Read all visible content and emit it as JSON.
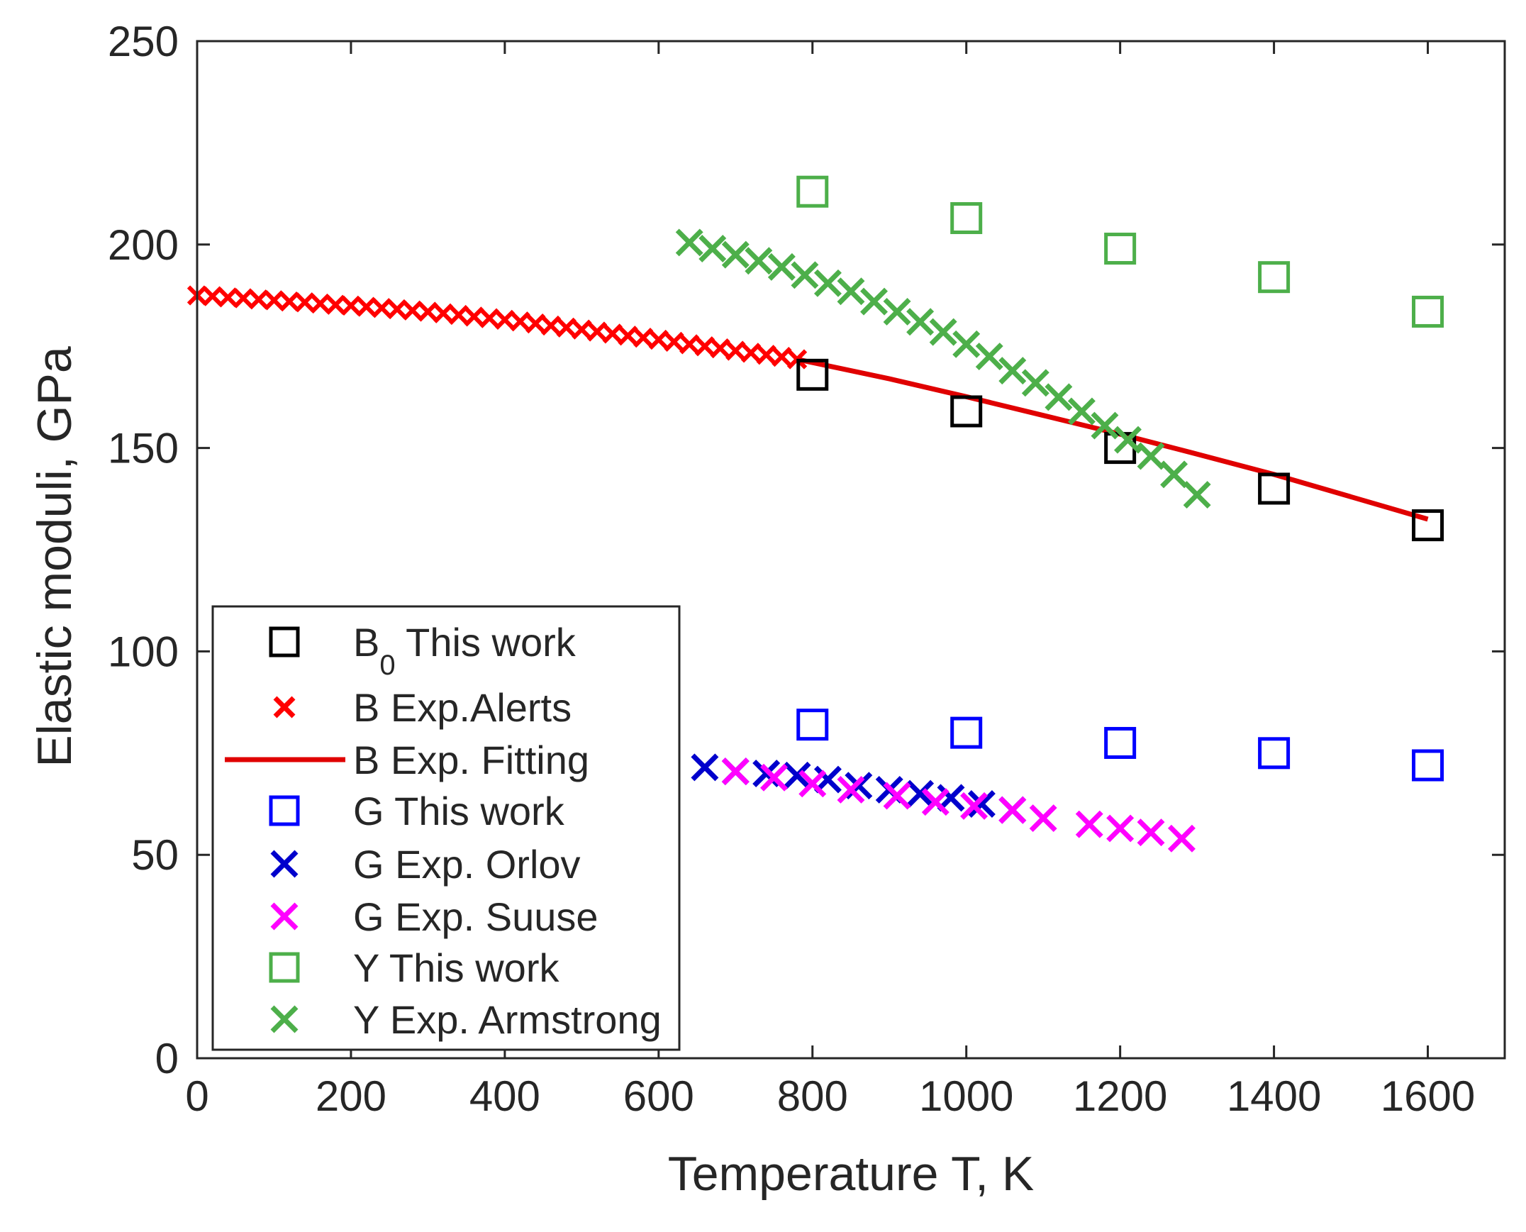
{
  "chart_data": {
    "type": "scatter",
    "title": "",
    "xlabel": "Temperature T, K",
    "ylabel": "Elastic moduli, GPa",
    "xlim": [
      0,
      1700
    ],
    "ylim": [
      0,
      250
    ],
    "xticks": [
      0,
      200,
      400,
      600,
      800,
      1000,
      1200,
      1400,
      1600
    ],
    "yticks": [
      0,
      50,
      100,
      150,
      200,
      250
    ],
    "grid": false,
    "legend_position": "lower-left",
    "series": [
      {
        "name": "B0 This work",
        "label_main": "B",
        "label_sub": "0",
        "label_rest": " This work",
        "marker": "square",
        "color": "#000000",
        "x": [
          800,
          1000,
          1200,
          1400,
          1600
        ],
        "y": [
          168,
          159,
          150,
          140,
          131
        ]
      },
      {
        "name": "B Exp.Alerts",
        "marker": "x",
        "color": "#ff0000",
        "x": [
          0,
          20,
          40,
          60,
          80,
          100,
          120,
          140,
          160,
          180,
          200,
          220,
          240,
          260,
          280,
          300,
          320,
          340,
          360,
          380,
          400,
          420,
          440,
          460,
          480,
          500,
          520,
          540,
          560,
          580,
          600,
          620,
          640,
          660,
          680,
          700,
          720,
          740,
          760,
          780
        ],
        "y": [
          187.5,
          187.3,
          187.0,
          186.8,
          186.5,
          186.3,
          186.0,
          185.8,
          185.5,
          185.2,
          185.0,
          184.7,
          184.4,
          184.1,
          183.8,
          183.5,
          183.1,
          182.7,
          182.3,
          181.9,
          181.5,
          181.1,
          180.6,
          180.1,
          179.6,
          179.1,
          178.6,
          178.1,
          177.6,
          177.1,
          176.6,
          176.1,
          175.5,
          175.0,
          174.5,
          173.9,
          173.4,
          172.9,
          172.4,
          171.8
        ]
      },
      {
        "name": "B Exp. Fitting",
        "marker": "line",
        "color": "#e00000",
        "x": [
          780,
          900,
          1000,
          1100,
          1200,
          1300,
          1400,
          1500,
          1600
        ],
        "y": [
          171.8,
          167.0,
          162.6,
          158.0,
          153.4,
          148.5,
          143.5,
          138.0,
          132.5
        ]
      },
      {
        "name": "G This work",
        "marker": "square",
        "color": "#0000ff",
        "x": [
          800,
          1000,
          1200,
          1400,
          1600
        ],
        "y": [
          82,
          80,
          77.5,
          75,
          72
        ]
      },
      {
        "name": "G Exp. Orlov",
        "marker": "x",
        "color": "#0000cc",
        "x": [
          660,
          700,
          740,
          780,
          820,
          860,
          900,
          940,
          980,
          1020,
          1060
        ],
        "y": [
          71.5,
          70.5,
          70.0,
          69.5,
          68.5,
          67.0,
          66.0,
          65.0,
          64.0,
          62.5,
          61.0
        ]
      },
      {
        "name": "G Exp. Suuse",
        "marker": "x",
        "color": "#ff00ff",
        "x": [
          700,
          750,
          800,
          850,
          910,
          960,
          1010,
          1060,
          1100,
          1160,
          1200,
          1240,
          1280
        ],
        "y": [
          70.5,
          69.0,
          67.5,
          66.0,
          64.5,
          63.0,
          62.0,
          61.0,
          59.0,
          57.5,
          56.5,
          55.5,
          54.0
        ]
      },
      {
        "name": "Y This work",
        "marker": "square",
        "color": "#4daf4a",
        "x": [
          800,
          1000,
          1200,
          1400,
          1600
        ],
        "y": [
          213,
          206.5,
          199,
          192,
          183.5
        ]
      },
      {
        "name": "Y Exp. Armstrong",
        "marker": "x",
        "color": "#4daf4a",
        "x": [
          640,
          670,
          700,
          730,
          760,
          790,
          820,
          850,
          880,
          910,
          940,
          970,
          1000,
          1030,
          1060,
          1090,
          1120,
          1150,
          1180,
          1210,
          1240,
          1270,
          1300
        ],
        "y": [
          200.5,
          199.0,
          197.5,
          196.0,
          194.5,
          192.5,
          190.5,
          188.5,
          186.0,
          183.5,
          181.0,
          178.5,
          175.5,
          172.5,
          169.0,
          166.0,
          162.5,
          159.0,
          155.5,
          152.0,
          148.0,
          143.5,
          138.5
        ]
      }
    ]
  }
}
